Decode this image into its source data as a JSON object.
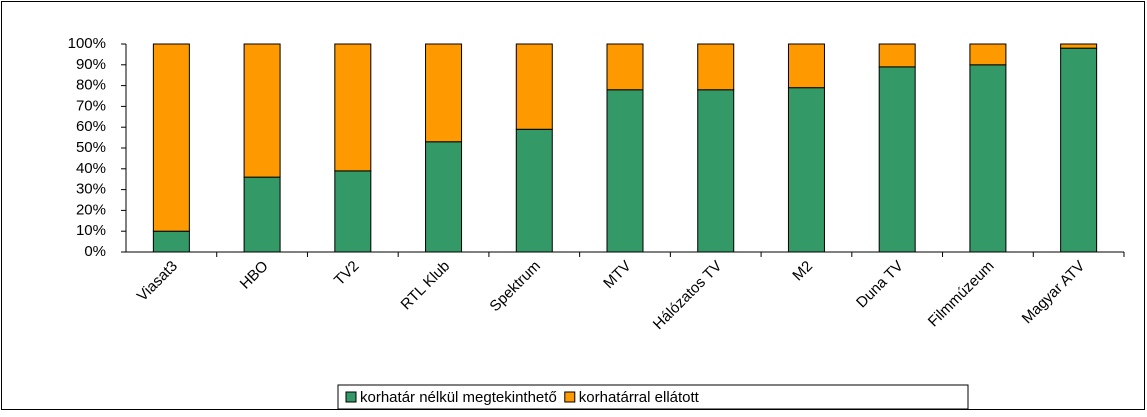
{
  "chart_data": {
    "type": "bar",
    "stacked": true,
    "categories": [
      "Viasat3",
      "HBO",
      "TV2",
      "RTL Klub",
      "Spektrum",
      "MTV",
      "Hálózatos TV",
      "M2",
      "Duna TV",
      "Filmmúzeum",
      "Magyar ATV"
    ],
    "series": [
      {
        "name": "korhatár nélkül megtekinthető",
        "color": "#339966",
        "values": [
          10,
          36,
          39,
          53,
          59,
          78,
          78,
          79,
          89,
          90,
          98
        ]
      },
      {
        "name": "korhatárral ellátott",
        "color": "#ff9900",
        "values": [
          90,
          64,
          61,
          47,
          41,
          22,
          22,
          21,
          11,
          10,
          2
        ]
      }
    ],
    "ylim": [
      0,
      100
    ],
    "yticks": [
      {
        "value": 0,
        "label": "0%"
      },
      {
        "value": 10,
        "label": "10%"
      },
      {
        "value": 20,
        "label": "20%"
      },
      {
        "value": 30,
        "label": "30%"
      },
      {
        "value": 40,
        "label": "40%"
      },
      {
        "value": 50,
        "label": "50%"
      },
      {
        "value": 60,
        "label": "60%"
      },
      {
        "value": 70,
        "label": "70%"
      },
      {
        "value": 80,
        "label": "80%"
      },
      {
        "value": 90,
        "label": "90%"
      },
      {
        "value": 100,
        "label": "100%"
      }
    ],
    "legend": "bottom"
  }
}
